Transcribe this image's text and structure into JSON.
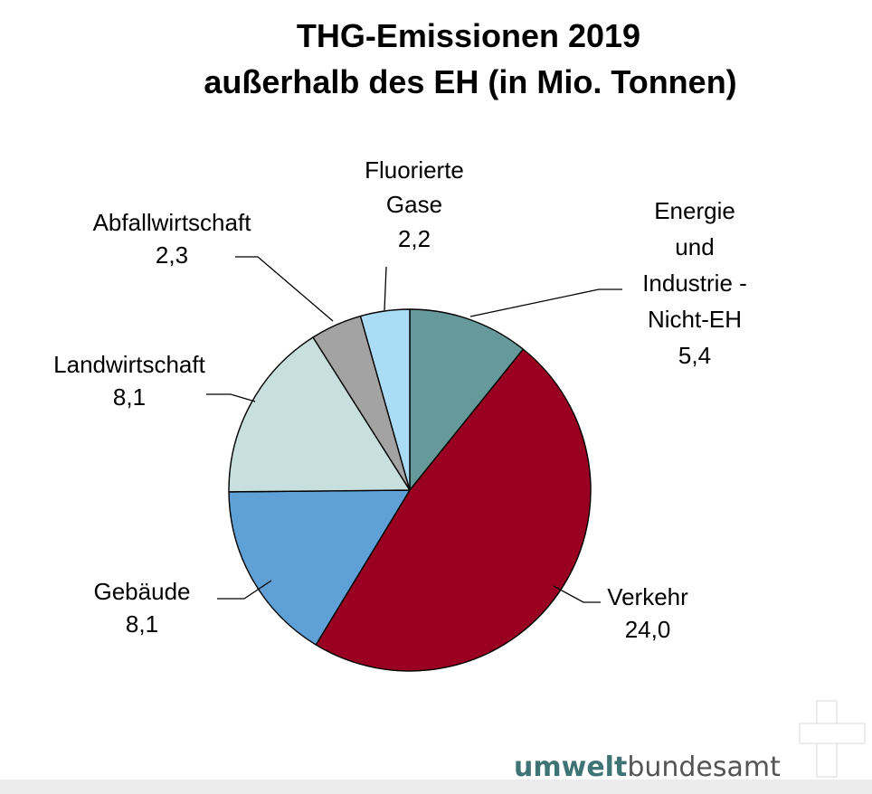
{
  "chart_data": {
    "type": "pie",
    "title_lines": [
      "THG-Emissionen 2019",
      "außerhalb des EH (in Mio. Tonnen)"
    ],
    "start": "12 o'clock",
    "direction": "clockwise",
    "slices": [
      {
        "name_lines": [
          "Energie",
          "und",
          "Industrie -",
          "Nicht-EH"
        ],
        "value_label": "5,4",
        "value": 5.4,
        "color": "#669999"
      },
      {
        "name_lines": [
          "Verkehr"
        ],
        "value_label": "24,0",
        "value": 24.0,
        "color": "#990022"
      },
      {
        "name_lines": [
          "Gebäude"
        ],
        "value_label": "8,1",
        "value": 8.1,
        "color": "#5fa1d6"
      },
      {
        "name_lines": [
          "Landwirtschaft"
        ],
        "value_label": "8,1",
        "value": 8.1,
        "color": "#c7dfdd"
      },
      {
        "name_lines": [
          "Abfallwirtschaft"
        ],
        "value_label": "2,3",
        "value": 2.3,
        "color": "#a3a3a3"
      },
      {
        "name_lines": [
          "Fluorierte",
          "Gase"
        ],
        "value_label": "2,2",
        "value": 2.2,
        "color": "#aadcf5"
      }
    ]
  },
  "logo": {
    "part1": "umwelt",
    "part2": "bundesamt",
    "color1": "#3f7474",
    "color2": "#555555"
  }
}
